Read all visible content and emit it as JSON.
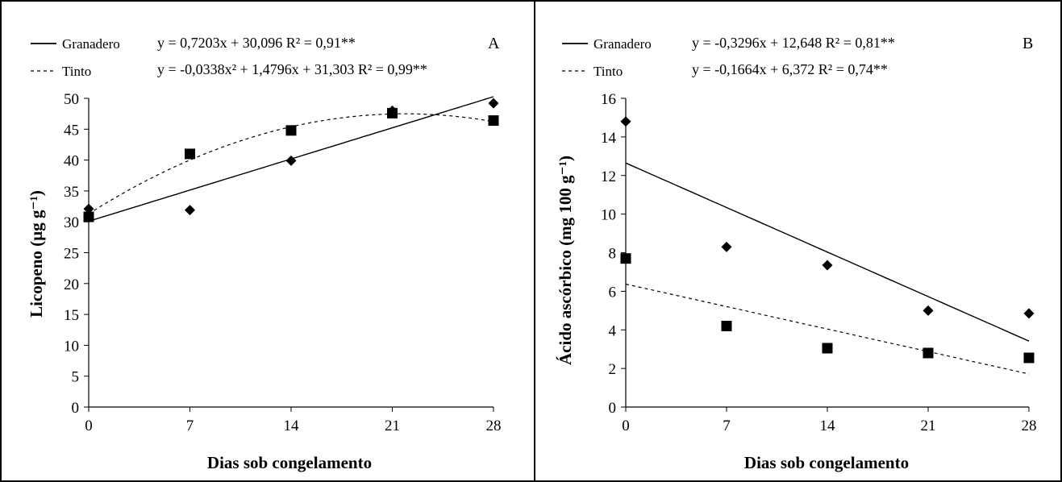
{
  "chart_data": [
    {
      "type": "scatter",
      "panel_label": "A",
      "xlabel": "Dias sob congelamento",
      "ylabel": "Licopeno (µg g⁻¹)",
      "xlim": [
        0,
        28
      ],
      "ylim": [
        0,
        50
      ],
      "x_ticks": [
        "0",
        "7",
        "14",
        "21",
        "28"
      ],
      "y_ticks": [
        "0",
        "5",
        "10",
        "15",
        "20",
        "25",
        "30",
        "35",
        "40",
        "45",
        "50"
      ],
      "grid": false,
      "legend_position": "top-left",
      "series": [
        {
          "name": "Granadero",
          "marker": "diamond",
          "line_style": "solid",
          "equation": "y = 0,7203x + 30,096  R² = 0,91**",
          "fit": {
            "kind": "linear",
            "a": 0,
            "b": 0.7203,
            "c": 30.096
          },
          "x": [
            0,
            7,
            14,
            21,
            28
          ],
          "y": [
            32.1,
            31.9,
            39.9,
            48.0,
            49.2
          ]
        },
        {
          "name": "Tinto",
          "marker": "square",
          "line_style": "dashed",
          "equation": "y = -0,0338x² + 1,4796x + 31,303  R² = 0,99**",
          "fit": {
            "kind": "quadratic",
            "a": -0.0338,
            "b": 1.4796,
            "c": 31.303
          },
          "x": [
            0,
            7,
            14,
            21,
            28
          ],
          "y": [
            30.8,
            41.0,
            44.8,
            47.6,
            46.4
          ]
        }
      ]
    },
    {
      "type": "scatter",
      "panel_label": "B",
      "xlabel": "Dias sob congelamento",
      "ylabel": "Ácido ascórbico (mg 100 g⁻¹)",
      "xlim": [
        0,
        28
      ],
      "ylim": [
        0,
        16
      ],
      "x_ticks": [
        "0",
        "7",
        "14",
        "21",
        "28"
      ],
      "y_ticks": [
        "0",
        "2",
        "4",
        "6",
        "8",
        "10",
        "12",
        "14",
        "16"
      ],
      "grid": false,
      "legend_position": "top-left",
      "series": [
        {
          "name": "Granadero",
          "marker": "diamond",
          "line_style": "solid",
          "equation": "y = -0,3296x + 12,648  R² = 0,81**",
          "fit": {
            "kind": "linear",
            "a": 0,
            "b": -0.3296,
            "c": 12.648
          },
          "x": [
            0,
            7,
            14,
            21,
            28
          ],
          "y": [
            14.8,
            8.3,
            7.35,
            5.0,
            4.85
          ]
        },
        {
          "name": "Tinto",
          "marker": "square",
          "line_style": "dashed",
          "equation": "y = -0,1664x + 6,372  R² = 0,74**",
          "fit": {
            "kind": "linear",
            "a": 0,
            "b": -0.1664,
            "c": 6.372
          },
          "x": [
            0,
            7,
            14,
            21,
            28
          ],
          "y": [
            7.7,
            4.2,
            3.05,
            2.8,
            2.55
          ]
        }
      ]
    }
  ]
}
